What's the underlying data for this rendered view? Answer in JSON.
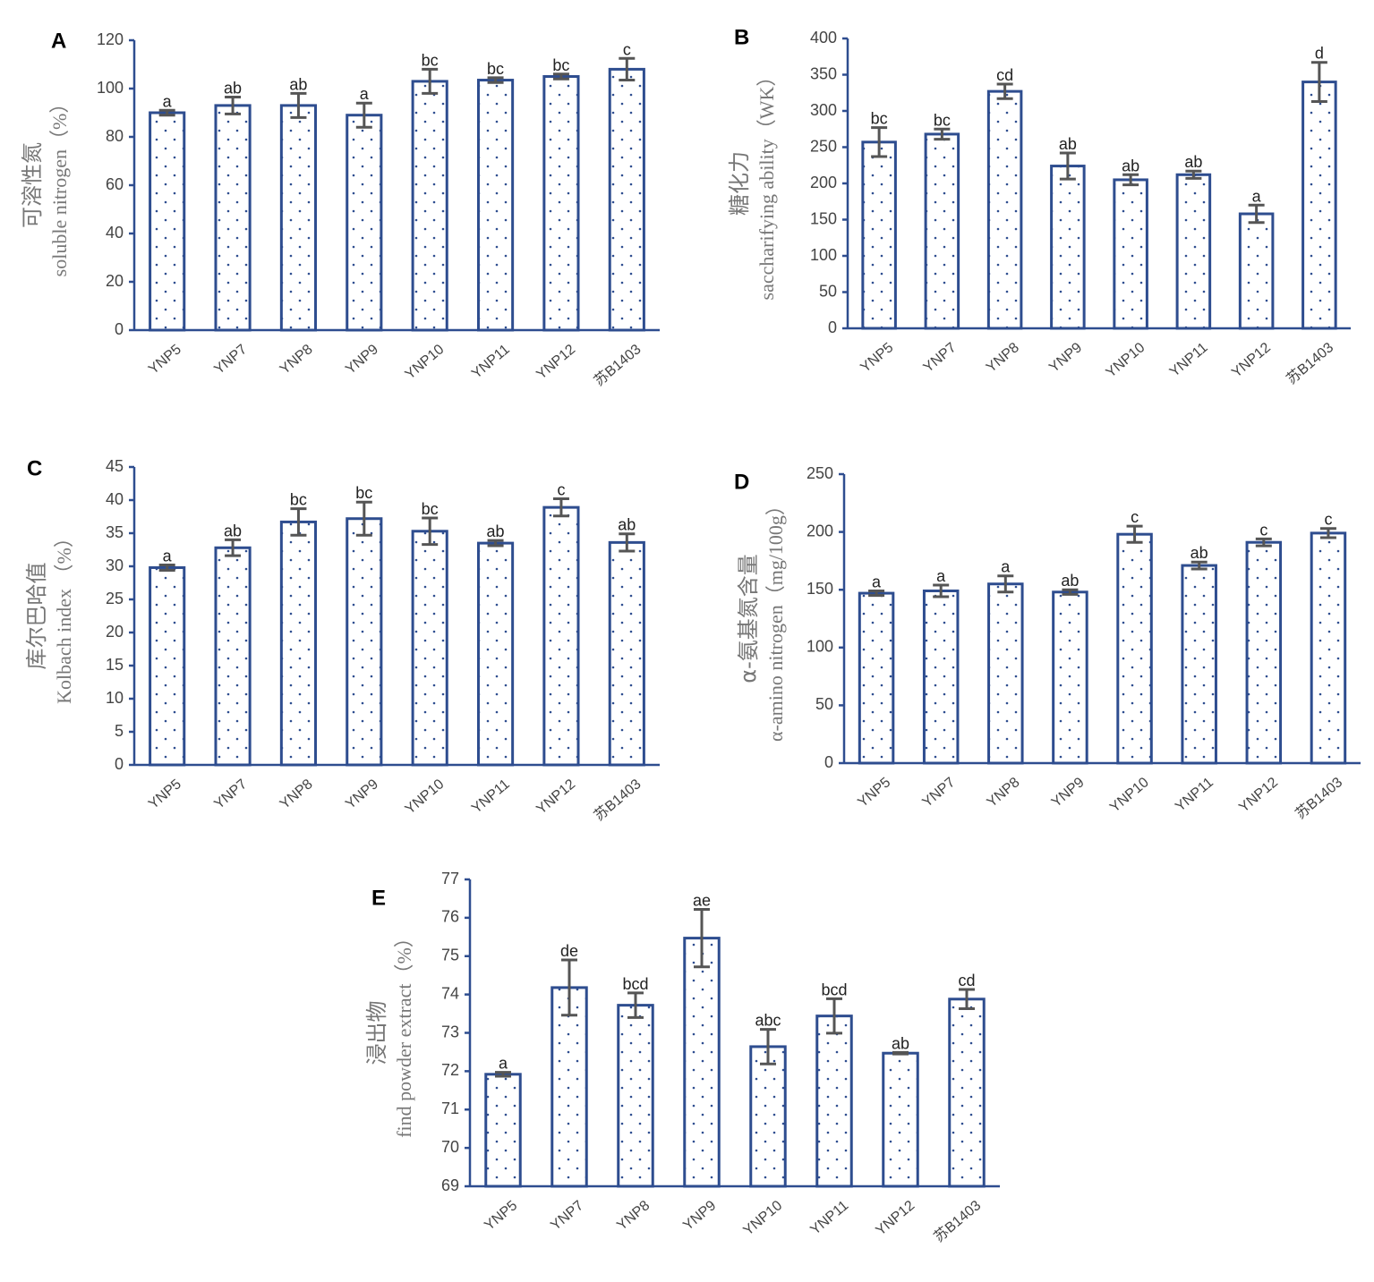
{
  "chart_data": [
    {
      "panel": "A",
      "type": "bar",
      "categories": [
        "YNP5",
        "YNP7",
        "YNP8",
        "YNP9",
        "YNP10",
        "YNP11",
        "YNP12",
        "苏B1403"
      ],
      "values": [
        90,
        93,
        93,
        89,
        103,
        103.5,
        105,
        108
      ],
      "errors": [
        1,
        3.5,
        5,
        5,
        5,
        1,
        1,
        4.5
      ],
      "labels": [
        "a",
        "ab",
        "ab",
        "a",
        "bc",
        "bc",
        "bc",
        "c"
      ],
      "ylabel_cn": "可溶性氮",
      "ylabel_en": "soluble nitrogen（%）",
      "ylim": [
        0,
        120
      ],
      "yticks": [
        0,
        20,
        40,
        60,
        80,
        100,
        120
      ]
    },
    {
      "panel": "B",
      "type": "bar",
      "categories": [
        "YNP5",
        "YNP7",
        "YNP8",
        "YNP9",
        "YNP10",
        "YNP11",
        "YNP12",
        "苏B1403"
      ],
      "values": [
        257,
        268,
        327,
        224,
        205,
        212,
        158,
        340
      ],
      "errors": [
        20,
        7,
        10,
        18,
        7,
        5,
        12,
        27
      ],
      "labels": [
        "bc",
        "bc",
        "cd",
        "ab",
        "ab",
        "ab",
        "a",
        "d"
      ],
      "ylabel_cn": "糖化力",
      "ylabel_en": "saccharifying ability（WK）",
      "ylim": [
        0,
        400
      ],
      "yticks": [
        0,
        50,
        100,
        150,
        200,
        250,
        300,
        350,
        400
      ]
    },
    {
      "panel": "C",
      "type": "bar",
      "categories": [
        "YNP5",
        "YNP7",
        "YNP8",
        "YNP9",
        "YNP10",
        "YNP11",
        "YNP12",
        "苏B1403"
      ],
      "values": [
        29.8,
        32.8,
        36.7,
        37.2,
        35.3,
        33.5,
        38.9,
        33.6
      ],
      "errors": [
        0.4,
        1.2,
        2,
        2.5,
        2,
        0.4,
        1.3,
        1.3
      ],
      "labels": [
        "a",
        "ab",
        "bc",
        "bc",
        "bc",
        "ab",
        "c",
        "ab"
      ],
      "ylabel_cn": "库尔巴哈值",
      "ylabel_en": "Kolbach index （%）",
      "ylim": [
        0,
        45
      ],
      "yticks": [
        0,
        5,
        10,
        15,
        20,
        25,
        30,
        35,
        40,
        45
      ]
    },
    {
      "panel": "D",
      "type": "bar",
      "categories": [
        "YNP5",
        "YNP7",
        "YNP8",
        "YNP9",
        "YNP10",
        "YNP11",
        "YNP12",
        "苏B1403"
      ],
      "values": [
        147,
        149,
        155,
        148,
        198,
        171,
        191,
        199
      ],
      "errors": [
        2,
        5,
        7,
        2,
        7,
        3,
        3,
        4
      ],
      "labels": [
        "a",
        "a",
        "a",
        "ab",
        "c",
        "ab",
        "c",
        "c"
      ],
      "ylabel_cn": "α-氨基氮含量",
      "ylabel_en": "α-amino nitrogen（mg/100g）",
      "ylim": [
        0,
        250
      ],
      "yticks": [
        0,
        50,
        100,
        150,
        200,
        250
      ]
    },
    {
      "panel": "E",
      "type": "bar",
      "categories": [
        "YNP5",
        "YNP7",
        "YNP8",
        "YNP9",
        "YNP10",
        "YNP11",
        "YNP12",
        "苏B1403"
      ],
      "values": [
        71.92,
        74.18,
        73.72,
        75.47,
        72.64,
        73.44,
        72.47,
        73.88
      ],
      "errors": [
        0.05,
        0.72,
        0.32,
        0.75,
        0.45,
        0.45,
        0.02,
        0.25
      ],
      "labels": [
        "a",
        "de",
        "bcd",
        "ae",
        "abc",
        "bcd",
        "ab",
        "cd"
      ],
      "ylabel_cn": "浸出物",
      "ylabel_en": "find powder extract（%）",
      "ylim": [
        69,
        77
      ],
      "yticks": [
        69,
        70,
        71,
        72,
        73,
        74,
        75,
        76,
        77
      ]
    }
  ],
  "colors": {
    "axis": "#2e4d8f",
    "bar_fill": "#ffffff",
    "dot": "#2e4d8f",
    "error_bar": "#555555",
    "axis_title": "#777777"
  }
}
